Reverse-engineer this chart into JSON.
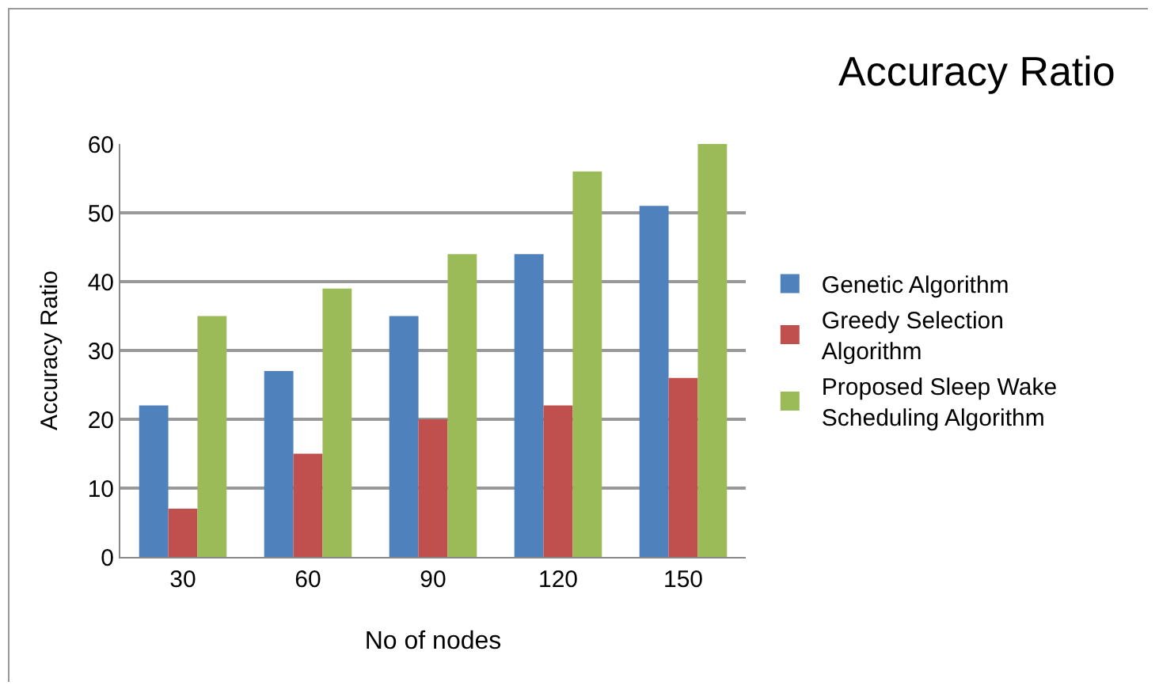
{
  "chart_data": {
    "type": "bar",
    "title": "Accuracy Ratio",
    "xlabel": "No of nodes",
    "ylabel": "Accuracy Ratio",
    "categories": [
      "30",
      "60",
      "90",
      "120",
      "150"
    ],
    "series": [
      {
        "name": "Genetic Algorithm",
        "color": "#4f81bd",
        "values": [
          22,
          27,
          35,
          44,
          51
        ]
      },
      {
        "name": "Greedy Selection Algorithm",
        "color": "#c0504d",
        "values": [
          7,
          15,
          20,
          22,
          26
        ]
      },
      {
        "name": "Proposed Sleep Wake Scheduling Algorithm",
        "color": "#9bbb59",
        "values": [
          35,
          39,
          44,
          56,
          60
        ]
      }
    ],
    "ylim": [
      0,
      60
    ],
    "yticks": [
      0,
      10,
      20,
      30,
      40,
      50,
      60
    ],
    "grid": "y",
    "legend": "right"
  }
}
